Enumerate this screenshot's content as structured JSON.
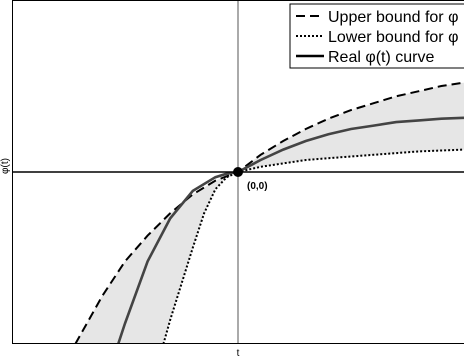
{
  "chart_data": {
    "type": "line",
    "xlabel": "t",
    "ylabel": "φ(t)",
    "xlim": [
      -1.0,
      1.0
    ],
    "ylim": [
      -1.0,
      1.0
    ],
    "grid": false,
    "legend_position": "top-right",
    "band_between": [
      "upper",
      "lower"
    ],
    "band_color": "#e6e6e6",
    "reference_lines": {
      "x": 0,
      "y": 0
    },
    "annotations": [
      {
        "text": "(0,0)",
        "x": 0,
        "y": 0
      }
    ],
    "series": [
      {
        "name": "Upper bound for φ",
        "style": "dashed",
        "color": "#000000",
        "x": [
          -0.72,
          -0.6,
          -0.5,
          -0.4,
          -0.3,
          -0.2,
          -0.1,
          0,
          0.1,
          0.2,
          0.3,
          0.4,
          0.5,
          0.6,
          0.7,
          0.8,
          0.9,
          1.0
        ],
        "y": [
          -1.0,
          -0.72,
          -0.52,
          -0.37,
          -0.24,
          -0.13,
          -0.05,
          0,
          0.1,
          0.18,
          0.25,
          0.31,
          0.36,
          0.4,
          0.44,
          0.47,
          0.5,
          0.52
        ]
      },
      {
        "name": "Lower bound for φ",
        "style": "dotted",
        "color": "#000000",
        "x": [
          -0.33,
          -0.3,
          -0.25,
          -0.2,
          -0.15,
          -0.1,
          -0.05,
          0,
          0.1,
          0.2,
          0.3,
          0.4,
          0.5,
          0.6,
          0.7,
          0.8,
          0.9,
          1.0
        ],
        "y": [
          -1.0,
          -0.86,
          -0.65,
          -0.44,
          -0.24,
          -0.1,
          -0.03,
          0,
          0.03,
          0.05,
          0.07,
          0.08,
          0.09,
          0.1,
          0.11,
          0.12,
          0.125,
          0.13
        ]
      },
      {
        "name": "Real φ(t) curve",
        "style": "solid",
        "color": "#444444",
        "x": [
          -0.53,
          -0.5,
          -0.4,
          -0.3,
          -0.2,
          -0.1,
          -0.05,
          0,
          0.1,
          0.2,
          0.3,
          0.4,
          0.5,
          0.6,
          0.7,
          0.8,
          0.9,
          1.0
        ],
        "y": [
          -1.0,
          -0.88,
          -0.52,
          -0.27,
          -0.11,
          -0.03,
          -0.01,
          0,
          0.07,
          0.13,
          0.18,
          0.22,
          0.25,
          0.27,
          0.29,
          0.3,
          0.31,
          0.315
        ]
      }
    ]
  }
}
